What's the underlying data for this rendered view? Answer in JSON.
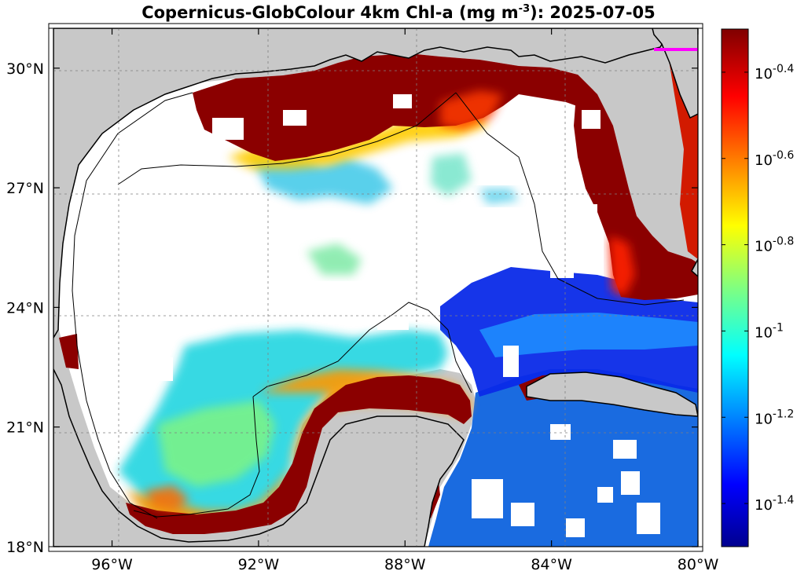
{
  "title": {
    "prefix": "Copernicus-GlobColour 4km Chl-a (mg m",
    "exponent": "-3",
    "suffix": "): 2025-07-05"
  },
  "map": {
    "lat_range": [
      18,
      31
    ],
    "lon_range": [
      -97.6,
      -80
    ],
    "lat_ticks": [
      {
        "value": 30,
        "label": "30°N"
      },
      {
        "value": 27,
        "label": "27°N"
      },
      {
        "value": 24,
        "label": "24°N"
      },
      {
        "value": 21,
        "label": "21°N"
      },
      {
        "value": 18,
        "label": "18°N"
      }
    ],
    "lon_ticks": [
      {
        "value": -96,
        "label": "96°W"
      },
      {
        "value": -92,
        "label": "92°W"
      },
      {
        "value": -88,
        "label": "88°W"
      },
      {
        "value": -84,
        "label": "84°W"
      },
      {
        "value": -80,
        "label": "80°W"
      }
    ],
    "grid": true,
    "land_color": "#c8c8c8",
    "no_data_color": "#ffffff"
  },
  "colorbar": {
    "scale": "log10",
    "range": [
      -1.5,
      -0.3
    ],
    "ticks": [
      {
        "value": -0.4,
        "base": "10",
        "exp": "-0.4"
      },
      {
        "value": -0.6,
        "base": "10",
        "exp": "-0.6"
      },
      {
        "value": -0.8,
        "base": "10",
        "exp": "-0.8"
      },
      {
        "value": -1,
        "base": "10",
        "exp": "-1"
      },
      {
        "value": -1.2,
        "base": "10",
        "exp": "-1.2"
      },
      {
        "value": -1.4,
        "base": "10",
        "exp": "-1.4"
      }
    ],
    "colormap": "jet"
  }
}
